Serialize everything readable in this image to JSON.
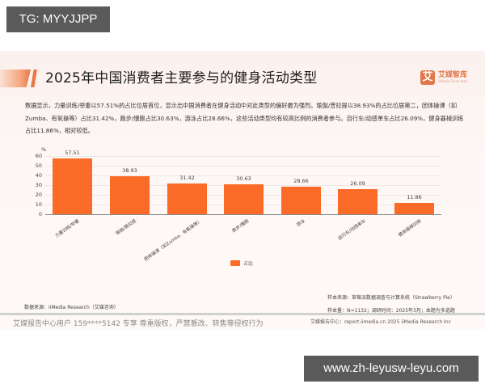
{
  "overlay": {
    "tg_label": "TG: MYYJJPP",
    "url_label": "www.zh-leyusw-leyu.com"
  },
  "slide": {
    "title": "2025年中国消费者主要参与的健身活动类型",
    "logo": {
      "mark": "艾",
      "name_cn": "艾媒智库",
      "name_en": "iiMedia Think tank"
    },
    "description": "数据显示，力量训练/举重以57.51%的占比位居首位，显示出中国消费者在健身活动中对此类型的偏好最为强烈。瑜伽/普拉提以38.93%的占比位居第二，团体操课（如Zumba、有氧操等）占比31.42%，跑步/慢跑占比30.63%，游泳占比28.66%，这些活动类型均有较高比例的消费者参与。自行车/动感单车占比26.09%，健身器械训练占比11.86%，相对较低。",
    "legend_label": "占比",
    "sample_source": "样本来源：草莓派数据调查与计算系统（Strawberry Pie）",
    "sample_size": "样本量：N=1132；调研时间：2025年3月；本题为多选题",
    "data_source": "数据来源：iiMedia Research（艾媒咨询）",
    "footer_watermark": "艾媒报告中心用户 159****5142 专享 尊重版权，严禁篡改、转售等侵权行为",
    "footer_site": "艾媒报告中心：report.iimedia.cn   2025 iiMedia Research Inc"
  },
  "chart_data": {
    "type": "bar",
    "title": "2025年中国消费者主要参与的健身活动类型",
    "xlabel": "",
    "ylabel": "%",
    "ylim": [
      0,
      60
    ],
    "yticks": [
      0,
      10,
      20,
      30,
      40,
      50,
      60
    ],
    "grid": true,
    "legend_position": "bottom",
    "categories": [
      "力量训练/举重",
      "瑜伽/普拉提",
      "团体操课（如Zumba、有氧操等）",
      "跑步/慢跑",
      "游泳",
      "自行车/动感单车",
      "健身器械训练"
    ],
    "series": [
      {
        "name": "占比",
        "color": "#fb6b28",
        "values": [
          57.51,
          38.93,
          31.42,
          30.63,
          28.66,
          26.09,
          11.86
        ]
      }
    ],
    "value_labels": [
      "57.51",
      "38.93",
      "31.42",
      "30.63",
      "28.66",
      "26.09",
      "11.86"
    ]
  }
}
